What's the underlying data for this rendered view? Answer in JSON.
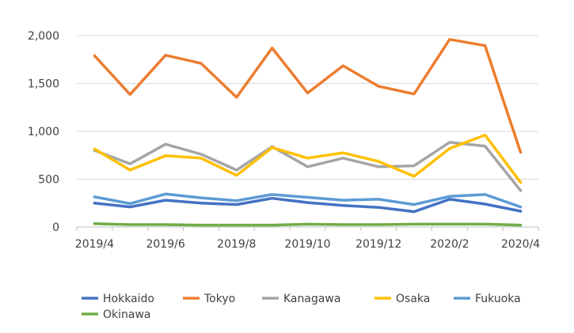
{
  "chart_data": {
    "type": "line",
    "title": "",
    "xlabel": "",
    "ylabel": "",
    "ylim": [
      0,
      2000
    ],
    "yticks": [
      0,
      500,
      1000,
      1500,
      2000
    ],
    "ytick_labels": [
      "0",
      "500",
      "1,000",
      "1,500",
      "2,000"
    ],
    "categories": [
      "2019/4",
      "2019/5",
      "2019/6",
      "2019/7",
      "2019/8",
      "2019/9",
      "2019/10",
      "2019/11",
      "2019/12",
      "2020/1",
      "2020/2",
      "2020/3",
      "2020/4"
    ],
    "xtick_labels": [
      "2019/4",
      "2019/6",
      "2019/8",
      "2019/10",
      "2019/12",
      "2020/2",
      "2020/4"
    ],
    "grid": "horizontal",
    "legend_position": "bottom",
    "series": [
      {
        "name": "Hokkaido",
        "color": "#4472C4",
        "values": [
          250,
          210,
          280,
          250,
          235,
          300,
          255,
          225,
          205,
          160,
          290,
          240,
          165
        ]
      },
      {
        "name": "Tokyo",
        "color": "#ED7D31",
        "values": [
          1790,
          1385,
          1795,
          1710,
          1355,
          1870,
          1400,
          1685,
          1470,
          1390,
          1960,
          1895,
          780
        ]
      },
      {
        "name": "Kanagawa",
        "color": "#A5A5A5",
        "values": [
          800,
          660,
          865,
          760,
          595,
          840,
          630,
          720,
          630,
          640,
          885,
          845,
          380
        ]
      },
      {
        "name": "Osaka",
        "color": "#FFC000",
        "values": [
          815,
          595,
          745,
          720,
          540,
          830,
          720,
          775,
          685,
          530,
          820,
          960,
          465
        ]
      },
      {
        "name": "Fukuoka",
        "color": "#5B9BD5",
        "values": [
          315,
          245,
          345,
          305,
          275,
          340,
          310,
          280,
          290,
          235,
          320,
          340,
          210
        ]
      },
      {
        "name": "Okinawa",
        "color": "#70AD47",
        "values": [
          35,
          25,
          25,
          20,
          20,
          20,
          30,
          25,
          25,
          30,
          30,
          30,
          20
        ]
      }
    ]
  }
}
